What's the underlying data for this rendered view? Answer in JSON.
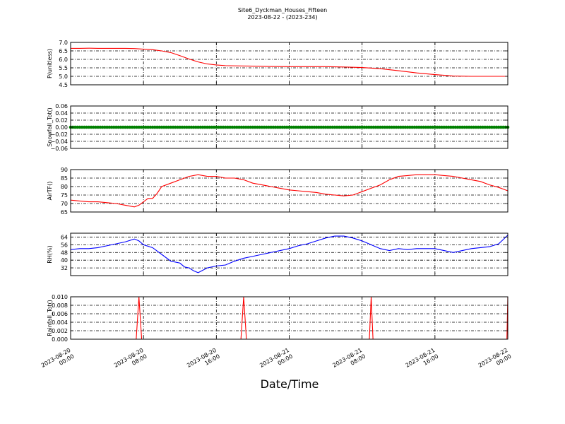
{
  "chart_data": {
    "title": "Site6_Dyckman_Houses_Fifteen",
    "subtitle": "2023-08-22 - (2023-234)",
    "xlabel": "Date/Time",
    "x_tick_labels": [
      [
        "2023-08-20",
        "00:00"
      ],
      [
        "2023-08-20",
        "08:00"
      ],
      [
        "2023-08-20",
        "16:00"
      ],
      [
        "2023-08-21",
        "00:00"
      ],
      [
        "2023-08-21",
        "08:00"
      ],
      [
        "2023-08-21",
        "16:00"
      ],
      [
        "2023-08-22",
        "00:00"
      ]
    ],
    "x_range_hours": [
      0,
      48
    ],
    "panels": [
      {
        "ylabel": "P(unitless)",
        "type": "line",
        "color": "#ff0000",
        "ylim": [
          4.5,
          7.0
        ],
        "yticks": [
          "7.0",
          "6.5",
          "6.0",
          "5.5",
          "5.0",
          "4.5"
        ],
        "ytick_values": [
          7.0,
          6.5,
          6.0,
          5.5,
          5.0,
          4.5
        ],
        "x": [
          0,
          1,
          2,
          3,
          4,
          5,
          6,
          7,
          8,
          9,
          10,
          11,
          12,
          13,
          14,
          15,
          16,
          17,
          18,
          20,
          22,
          24,
          26,
          28,
          30,
          32,
          34,
          36,
          38,
          40,
          42,
          44,
          46,
          48
        ],
        "y": [
          6.65,
          6.65,
          6.66,
          6.65,
          6.65,
          6.65,
          6.65,
          6.64,
          6.6,
          6.57,
          6.5,
          6.4,
          6.22,
          6.02,
          5.85,
          5.73,
          5.67,
          5.63,
          5.62,
          5.6,
          5.58,
          5.57,
          5.57,
          5.57,
          5.55,
          5.52,
          5.45,
          5.33,
          5.2,
          5.1,
          5.02,
          5.0,
          5.0,
          5.0
        ]
      },
      {
        "ylabel": "Snowfall_Tot()",
        "type": "scatter",
        "color": "#008000",
        "ylim": [
          -0.06,
          0.06
        ],
        "yticks": [
          "0.06",
          "0.04",
          "0.02",
          "0.00",
          "−0.02",
          "−0.04",
          "−0.06"
        ],
        "ytick_values": [
          0.06,
          0.04,
          0.02,
          0.0,
          -0.02,
          -0.04,
          -0.06
        ],
        "constant_value": 0.0,
        "interval_hours": 0.25
      },
      {
        "ylabel": "AirTF()",
        "type": "line",
        "color": "#ff0000",
        "ylim": [
          65,
          90
        ],
        "yticks": [
          "90",
          "85",
          "80",
          "75",
          "70",
          "65"
        ],
        "ytick_values": [
          90,
          85,
          80,
          75,
          70,
          65
        ],
        "x": [
          0,
          1,
          2,
          3,
          4,
          5,
          6,
          7,
          7.5,
          8,
          8.5,
          9,
          9.5,
          10,
          11,
          12,
          13,
          14,
          15,
          16,
          17,
          18,
          19,
          20,
          21,
          22,
          23,
          24,
          25,
          26,
          27,
          28,
          29,
          30,
          31,
          32,
          33,
          34,
          35,
          36,
          37,
          38,
          39,
          40,
          41,
          42,
          43,
          44,
          45,
          46,
          47,
          48
        ],
        "y": [
          72,
          71.5,
          71,
          71,
          70.5,
          70,
          69,
          68,
          69,
          71,
          73,
          73,
          76,
          80,
          82,
          84,
          86,
          87,
          86,
          86,
          85,
          85,
          84,
          82,
          81,
          80,
          79,
          78,
          77.5,
          77,
          76.5,
          75.5,
          75,
          74.5,
          75,
          77,
          79,
          81,
          84,
          86,
          86.5,
          87,
          87,
          87,
          86.5,
          86,
          85,
          84,
          83,
          81,
          79.5,
          77.5
        ]
      },
      {
        "ylabel": "RH(%)",
        "type": "line",
        "color": "#0000ff",
        "ylim": [
          24,
          68
        ],
        "yticks": [
          "64",
          "56",
          "48",
          "40",
          "32"
        ],
        "ytick_values": [
          64,
          56,
          48,
          40,
          32
        ],
        "x": [
          0,
          1,
          2,
          3,
          4,
          5,
          6,
          7,
          7.5,
          8,
          9,
          10,
          11,
          12,
          12.5,
          13,
          13.5,
          14,
          15,
          16,
          17,
          18,
          19,
          20,
          21,
          22,
          23,
          24,
          25,
          26,
          27,
          28,
          29,
          30,
          31,
          32,
          33,
          34,
          35,
          36,
          37,
          38,
          39,
          40,
          41,
          42,
          43,
          44,
          45,
          46,
          47,
          48
        ],
        "y": [
          51,
          52,
          52,
          53,
          55,
          57,
          59,
          62,
          60,
          56,
          53,
          46,
          39,
          37,
          33,
          32,
          29,
          27,
          32,
          34,
          35,
          39,
          42,
          44,
          46,
          48,
          50,
          52,
          55,
          57,
          60,
          63,
          65,
          65,
          63,
          60,
          56,
          52,
          50,
          52,
          51,
          52,
          52,
          52,
          50,
          48,
          50,
          52,
          53,
          54,
          57,
          66
        ]
      },
      {
        "ylabel": "Rainfall_Tot()",
        "type": "line",
        "color": "#ff0000",
        "ylim": [
          0,
          0.01
        ],
        "yticks": [
          "0.010",
          "0.008",
          "0.006",
          "0.004",
          "0.002",
          "0.000"
        ],
        "ytick_values": [
          0.01,
          0.008,
          0.006,
          0.004,
          0.002,
          0.0
        ],
        "x": [
          0,
          7.2,
          7.5,
          7.8,
          18.7,
          19.0,
          19.3,
          32.8,
          33.0,
          33.2,
          47.9,
          48
        ],
        "y": [
          0,
          0,
          0.01,
          0,
          0,
          0.01,
          0,
          0,
          0.01,
          0,
          0,
          0.01
        ]
      }
    ]
  }
}
